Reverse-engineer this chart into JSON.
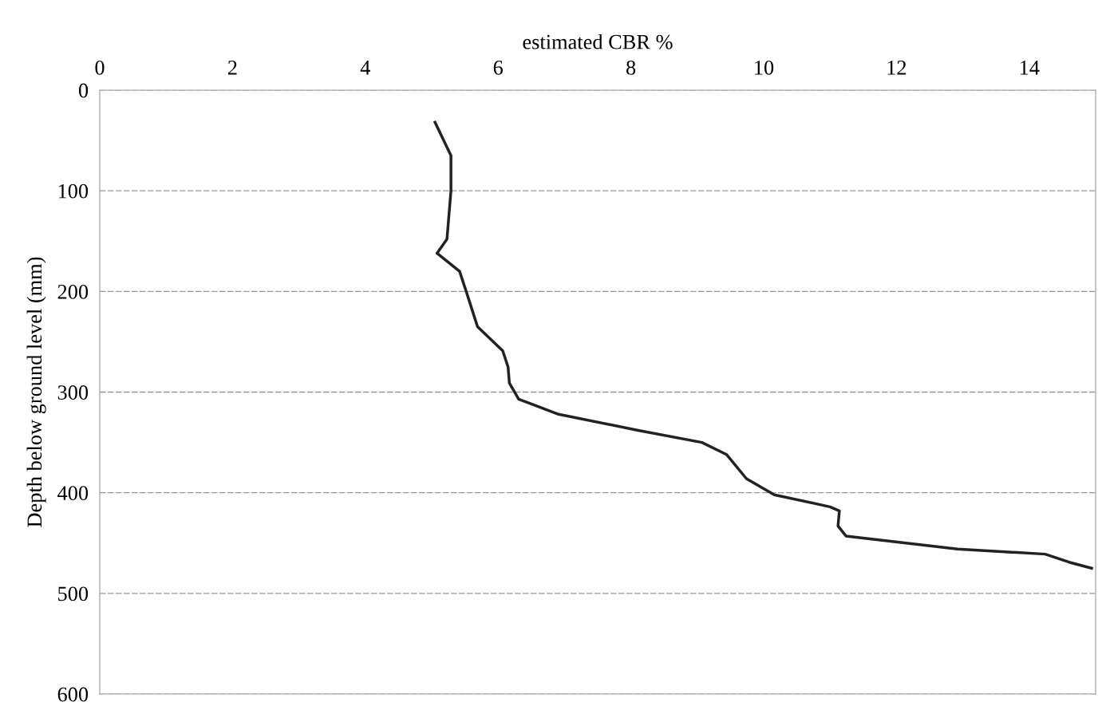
{
  "chart_data": {
    "type": "line",
    "xlabel": "estimated CBR %",
    "ylabel": "Depth below ground level (mm)",
    "xlim": [
      0,
      15
    ],
    "xticks": [
      0,
      2,
      4,
      6,
      8,
      10,
      12,
      14
    ],
    "ylim": [
      600,
      0
    ],
    "yticks": [
      0,
      100,
      200,
      300,
      400,
      500,
      600
    ],
    "grid": "y",
    "legend": false,
    "marker": "none",
    "line_style": "solid",
    "series": [
      {
        "color": "#222222",
        "x": [
          5.05,
          5.29,
          5.29,
          5.23,
          5.08,
          5.42,
          5.52,
          5.69,
          6.07,
          6.15,
          6.17,
          6.31,
          6.91,
          8.11,
          9.07,
          9.44,
          9.74,
          10.16,
          11.0,
          11.14,
          11.12,
          11.24,
          12.92,
          14.24,
          14.6,
          14.94
        ],
        "values": [
          32,
          65,
          100,
          148,
          162,
          180,
          200,
          235,
          259,
          275,
          291,
          307,
          322,
          338,
          350,
          362,
          386,
          402,
          414,
          418,
          433,
          443,
          456,
          461,
          469,
          475
        ]
      }
    ]
  }
}
